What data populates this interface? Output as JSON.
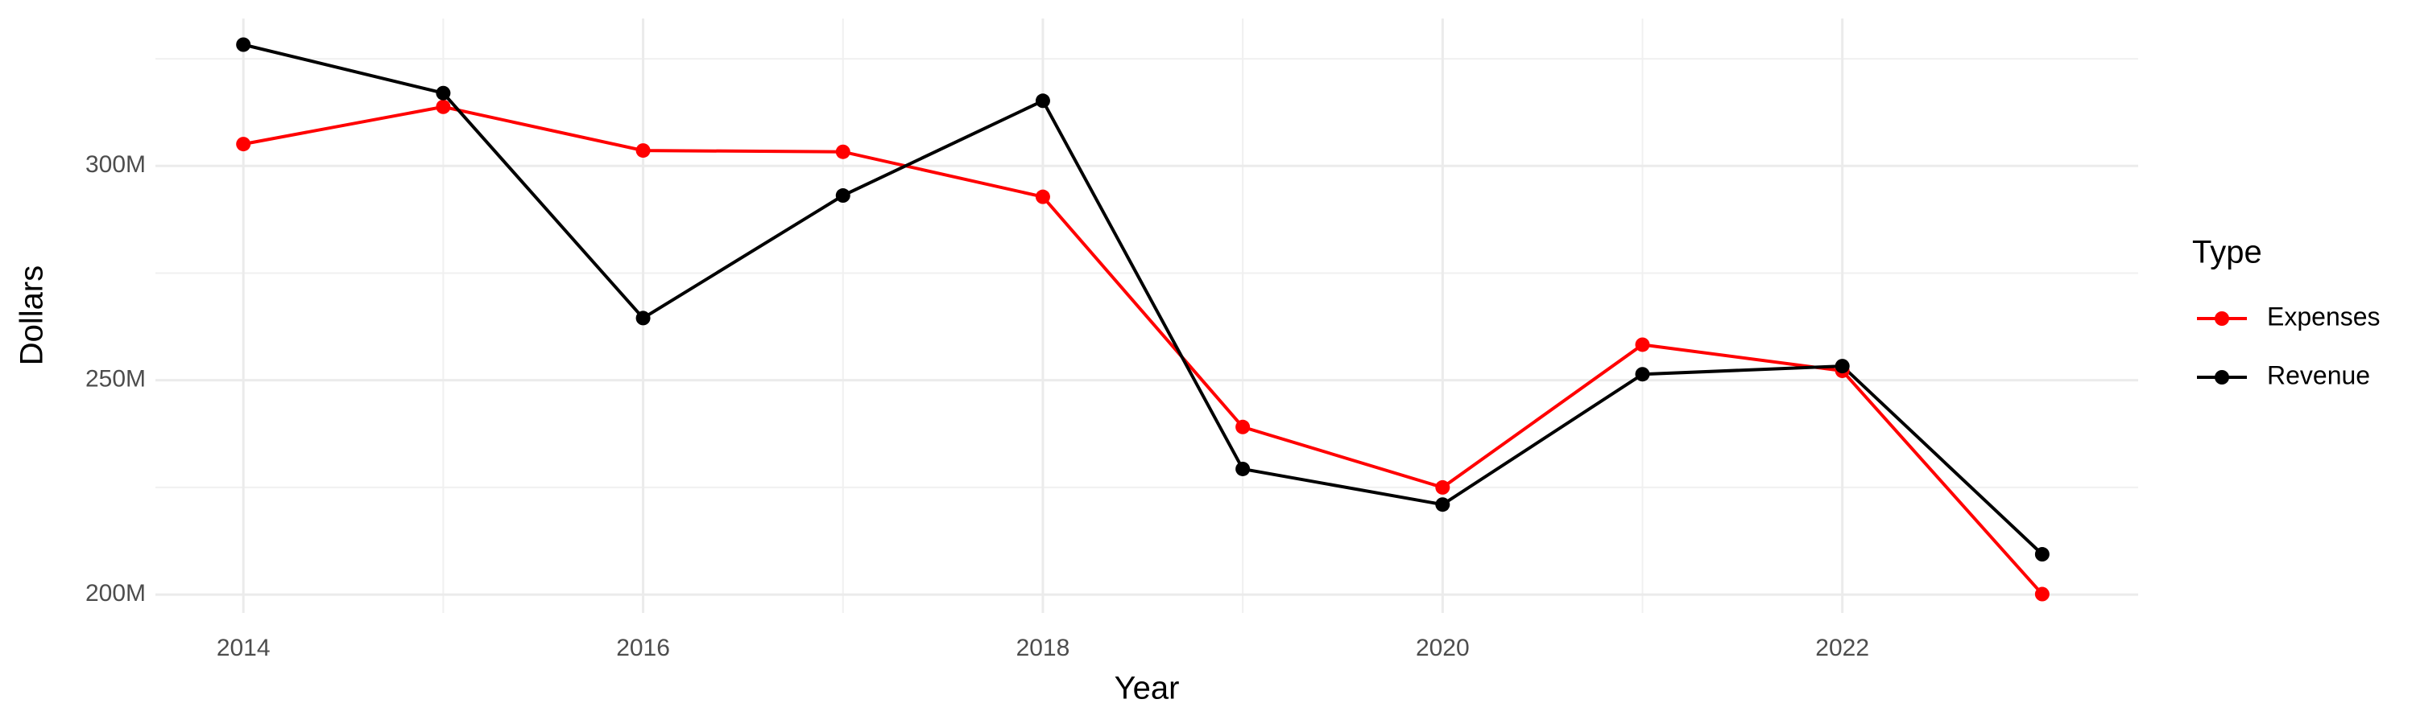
{
  "chart_data": {
    "type": "line",
    "x_label": "Year",
    "y_label": "Dollars",
    "legend_title": "Type",
    "x": [
      2014,
      2015,
      2016,
      2017,
      2018,
      2019,
      2020,
      2021,
      2022,
      2023
    ],
    "series": [
      {
        "name": "Expenses",
        "color": "#ff0000",
        "values": [
          305100000,
          313800000,
          303600000,
          303300000,
          292800000,
          239100000,
          225000000,
          258300000,
          252200000,
          200100000
        ]
      },
      {
        "name": "Revenue",
        "color": "#000000",
        "values": [
          328300000,
          317000000,
          264500000,
          293100000,
          315200000,
          229300000,
          221000000,
          251400000,
          253300000,
          209400000
        ]
      }
    ],
    "xlim": [
      2013.56,
      2023.48
    ],
    "xticks": [
      2014,
      2016,
      2018,
      2020,
      2022
    ],
    "ylim": [
      195700000,
      334400000
    ],
    "yticks": [
      {
        "value": 200000000,
        "label": "200M"
      },
      {
        "value": 250000000,
        "label": "250M"
      },
      {
        "value": 300000000,
        "label": "300M"
      }
    ],
    "grid": true,
    "legend": "right"
  }
}
